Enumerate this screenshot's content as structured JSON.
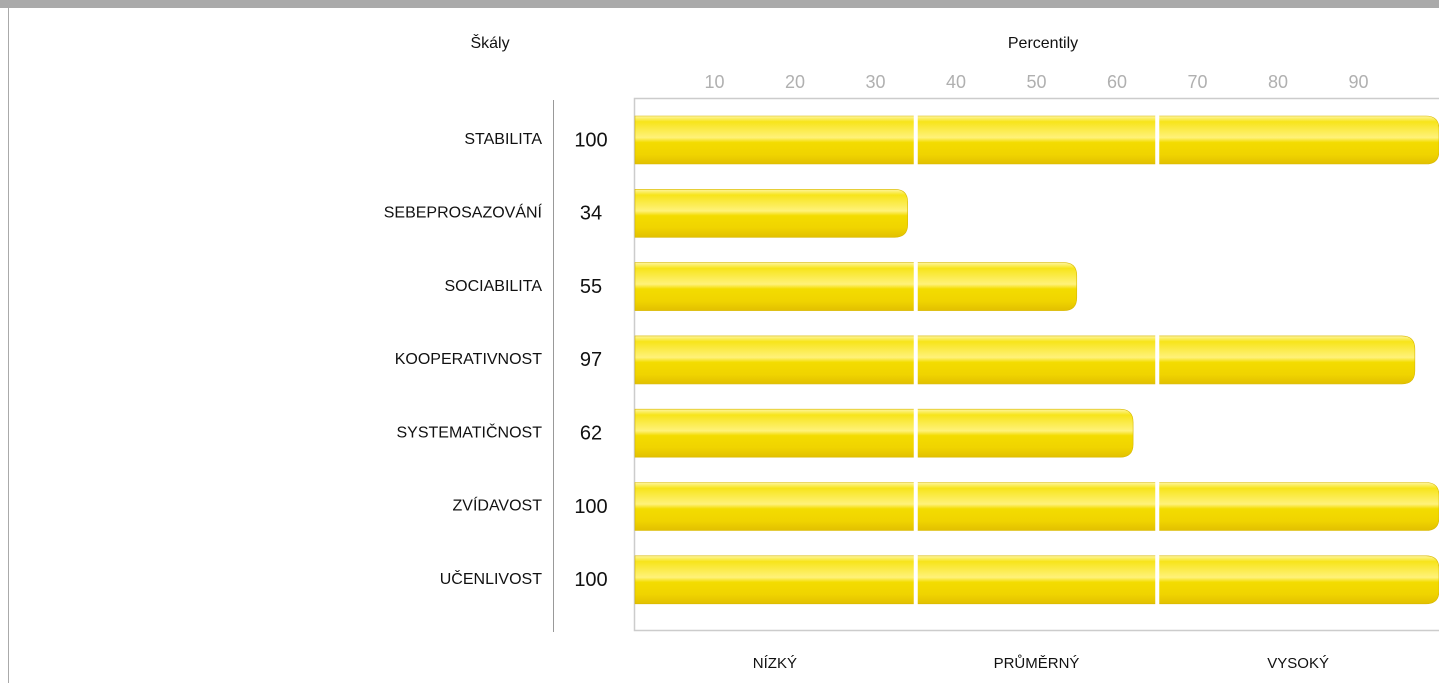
{
  "chart_data": {
    "type": "bar",
    "orientation": "horizontal",
    "y_label": "Škály",
    "x_label": "Percentily",
    "categories": [
      "STABILITA",
      "SEBEPROSAZOVÁNÍ",
      "SOCIABILITA",
      "KOOPERATIVNOST",
      "SYSTEMATIČNOST",
      "ZVÍDAVOST",
      "UČENLIVOST"
    ],
    "values": [
      100,
      34,
      55,
      97,
      62,
      100,
      100
    ],
    "color": "#f5e000",
    "xlim": [
      0,
      100
    ],
    "xticks": [
      10,
      20,
      30,
      40,
      50,
      60,
      70,
      80,
      90
    ],
    "bands": [
      {
        "name": "NÍZKÝ",
        "from": 0,
        "to": 35
      },
      {
        "name": "PRŮMĚRNÝ",
        "from": 35,
        "to": 65
      },
      {
        "name": "VYSOKÝ",
        "from": 65,
        "to": 100
      }
    ]
  }
}
